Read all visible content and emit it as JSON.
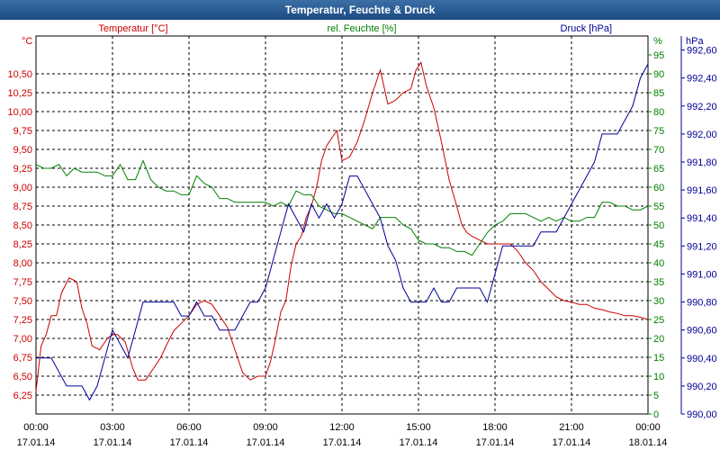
{
  "window": {
    "title": "Temperatur, Feuchte & Druck"
  },
  "chart_data": {
    "type": "line",
    "title": "Temperatur, Feuchte & Druck",
    "x_ticks": [
      {
        "time": "00:00",
        "date": "17.01.14"
      },
      {
        "time": "03:00",
        "date": "17.01.14"
      },
      {
        "time": "06:00",
        "date": "17.01.14"
      },
      {
        "time": "09:00",
        "date": "17.01.14"
      },
      {
        "time": "12:00",
        "date": "17.01.14"
      },
      {
        "time": "15:00",
        "date": "17.01.14"
      },
      {
        "time": "18:00",
        "date": "17.01.14"
      },
      {
        "time": "21:00",
        "date": "17.01.14"
      },
      {
        "time": "00:00",
        "date": "18.01.14"
      }
    ],
    "xlim": [
      0,
      24
    ],
    "axes": {
      "temperature": {
        "unit": "°C",
        "ylim": [
          6.0,
          11.0
        ],
        "ticks": [
          "6,25",
          "6,50",
          "6,75",
          "7,00",
          "7,25",
          "7,50",
          "7,75",
          "8,00",
          "8,25",
          "8,50",
          "8,75",
          "9,00",
          "9,25",
          "9,50",
          "9,75",
          "10,00",
          "10,25",
          "10,50"
        ],
        "color": "#cc0000"
      },
      "humidity": {
        "unit": "%",
        "ylim": [
          0,
          100
        ],
        "ticks": [
          "0",
          "5",
          "10",
          "15",
          "20",
          "25",
          "30",
          "35",
          "40",
          "45",
          "50",
          "55",
          "60",
          "65",
          "70",
          "75",
          "80",
          "85",
          "90",
          "95"
        ],
        "color": "#008000"
      },
      "pressure": {
        "unit": "hPa",
        "ylim": [
          990.0,
          992.7
        ],
        "ticks": [
          "990,00",
          "990,20",
          "990,40",
          "990,60",
          "990,80",
          "991,00",
          "991,20",
          "991,40",
          "991,60",
          "991,80",
          "992,00",
          "992,20",
          "992,40",
          "992,60"
        ],
        "color": "#000099"
      }
    },
    "series": [
      {
        "name": "Temperatur [°C]",
        "axis": "temperature",
        "color": "#cc0000",
        "x": [
          0,
          0.2,
          0.4,
          0.6,
          0.8,
          1.0,
          1.3,
          1.6,
          1.8,
          2.0,
          2.2,
          2.5,
          2.8,
          3.0,
          3.2,
          3.5,
          3.8,
          4.0,
          4.3,
          4.6,
          4.9,
          5.1,
          5.4,
          5.7,
          6.0,
          6.3,
          6.6,
          6.9,
          7.2,
          7.5,
          7.8,
          8.1,
          8.4,
          8.7,
          9.0,
          9.2,
          9.4,
          9.6,
          9.8,
          10.0,
          10.2,
          10.4,
          10.6,
          10.8,
          11.0,
          11.2,
          11.4,
          11.6,
          11.8,
          12.0,
          12.3,
          12.6,
          12.9,
          13.2,
          13.5,
          13.8,
          14.1,
          14.4,
          14.7,
          14.9,
          15.1,
          15.3,
          15.6,
          15.9,
          16.2,
          16.5,
          16.7,
          16.9,
          17.1,
          17.4,
          17.7,
          18.0,
          18.3,
          18.6,
          18.9,
          19.2,
          19.5,
          19.8,
          20.1,
          20.4,
          20.7,
          21.0,
          21.3,
          21.6,
          21.9,
          22.2,
          22.5,
          22.8,
          23.1,
          23.4,
          23.7,
          24.0
        ],
        "values": [
          6.3,
          6.9,
          7.05,
          7.3,
          7.3,
          7.6,
          7.8,
          7.75,
          7.4,
          7.2,
          6.9,
          6.85,
          7.0,
          7.05,
          7.05,
          6.95,
          6.6,
          6.45,
          6.45,
          6.6,
          6.75,
          6.9,
          7.1,
          7.2,
          7.3,
          7.45,
          7.5,
          7.45,
          7.3,
          7.15,
          6.85,
          6.55,
          6.45,
          6.5,
          6.5,
          6.7,
          7.0,
          7.35,
          7.5,
          7.95,
          8.25,
          8.35,
          8.6,
          8.75,
          9.0,
          9.35,
          9.55,
          9.65,
          9.75,
          9.35,
          9.4,
          9.6,
          9.9,
          10.25,
          10.55,
          10.1,
          10.15,
          10.25,
          10.3,
          10.55,
          10.65,
          10.35,
          10.05,
          9.6,
          9.1,
          8.75,
          8.5,
          8.4,
          8.35,
          8.3,
          8.25,
          8.25,
          8.25,
          8.25,
          8.15,
          8.0,
          7.9,
          7.75,
          7.65,
          7.55,
          7.5,
          7.48,
          7.45,
          7.45,
          7.4,
          7.38,
          7.35,
          7.33,
          7.3,
          7.3,
          7.28,
          7.25
        ]
      },
      {
        "name": "rel. Feuchte [%]",
        "axis": "humidity",
        "color": "#008000",
        "x": [
          0,
          0.3,
          0.6,
          0.9,
          1.2,
          1.5,
          1.8,
          2.1,
          2.4,
          2.7,
          3.0,
          3.3,
          3.6,
          3.9,
          4.2,
          4.5,
          4.8,
          5.1,
          5.4,
          5.7,
          6.0,
          6.3,
          6.6,
          6.9,
          7.2,
          7.5,
          7.8,
          8.1,
          8.4,
          8.7,
          9.0,
          9.3,
          9.6,
          9.9,
          10.2,
          10.5,
          10.8,
          11.1,
          11.4,
          11.7,
          12.0,
          12.3,
          12.6,
          12.9,
          13.2,
          13.5,
          13.8,
          14.1,
          14.4,
          14.7,
          15.0,
          15.3,
          15.6,
          15.9,
          16.2,
          16.5,
          16.8,
          17.1,
          17.4,
          17.7,
          18.0,
          18.3,
          18.6,
          18.9,
          19.2,
          19.5,
          19.8,
          20.1,
          20.4,
          20.7,
          21.0,
          21.3,
          21.6,
          21.9,
          22.2,
          22.5,
          22.8,
          23.1,
          23.4,
          23.7,
          24.0
        ],
        "values": [
          66,
          65,
          65,
          66,
          63,
          65,
          64,
          64,
          64,
          63,
          63,
          66,
          62,
          62,
          67,
          62,
          60,
          59,
          59,
          58,
          58,
          63,
          61,
          60,
          57,
          57,
          56,
          56,
          56,
          56,
          56,
          55,
          56,
          55,
          59,
          58,
          58,
          55,
          54,
          53,
          53,
          52,
          51,
          50,
          49,
          52,
          52,
          52,
          50,
          49,
          46,
          45,
          45,
          44,
          44,
          43,
          43,
          42,
          45,
          48,
          50,
          51,
          53,
          53,
          53,
          52,
          51,
          52,
          51,
          52,
          51,
          51,
          52,
          52,
          56,
          56,
          55,
          55,
          54,
          54,
          55
        ]
      },
      {
        "name": "Druck [hPa]",
        "axis": "pressure",
        "color": "#000099",
        "x": [
          0,
          0.3,
          0.6,
          0.9,
          1.2,
          1.5,
          1.8,
          2.1,
          2.4,
          2.7,
          3.0,
          3.3,
          3.6,
          3.9,
          4.2,
          4.5,
          4.8,
          5.1,
          5.4,
          5.7,
          6.0,
          6.3,
          6.6,
          6.9,
          7.2,
          7.5,
          7.8,
          8.1,
          8.4,
          8.7,
          9.0,
          9.3,
          9.6,
          9.9,
          10.2,
          10.5,
          10.8,
          11.1,
          11.4,
          11.7,
          12.0,
          12.3,
          12.6,
          12.9,
          13.2,
          13.5,
          13.8,
          14.1,
          14.4,
          14.7,
          15.0,
          15.3,
          15.6,
          15.9,
          16.2,
          16.5,
          16.8,
          17.1,
          17.4,
          17.7,
          18.0,
          18.3,
          18.6,
          18.9,
          19.2,
          19.5,
          19.8,
          20.1,
          20.4,
          20.7,
          21.0,
          21.3,
          21.6,
          21.9,
          22.2,
          22.5,
          22.8,
          23.1,
          23.4,
          23.7,
          24.0
        ],
        "values": [
          990.4,
          990.4,
          990.4,
          990.3,
          990.2,
          990.2,
          990.2,
          990.1,
          990.2,
          990.4,
          990.6,
          990.5,
          990.4,
          990.6,
          990.8,
          990.8,
          990.8,
          990.8,
          990.8,
          990.7,
          990.7,
          990.8,
          990.7,
          990.7,
          990.6,
          990.6,
          990.6,
          990.7,
          990.8,
          990.8,
          990.9,
          991.1,
          991.3,
          991.5,
          991.4,
          991.3,
          991.5,
          991.4,
          991.5,
          991.4,
          991.5,
          991.7,
          991.7,
          991.6,
          991.5,
          991.4,
          991.2,
          991.1,
          990.9,
          990.8,
          990.8,
          990.8,
          990.9,
          990.8,
          990.8,
          990.9,
          990.9,
          990.9,
          990.9,
          990.8,
          991.0,
          991.2,
          991.2,
          991.2,
          991.2,
          991.2,
          991.3,
          991.3,
          991.3,
          991.4,
          991.5,
          991.6,
          991.7,
          991.8,
          992.0,
          992.0,
          992.0,
          992.1,
          992.2,
          992.4,
          992.5
        ]
      }
    ],
    "legend": [
      "Temperatur [°C]",
      "rel. Feuchte [%]",
      "Druck [hPa]"
    ]
  }
}
